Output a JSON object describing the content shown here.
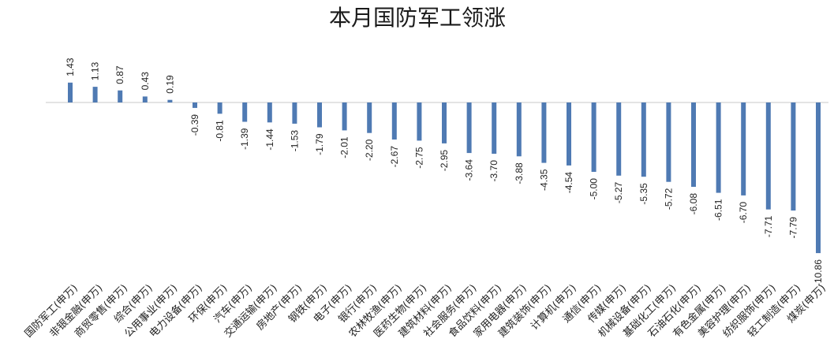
{
  "chart_data": {
    "type": "bar",
    "title": "本月国防军工领涨",
    "categories": [
      "国防军工(申万)",
      "非银金融(申万)",
      "商贸零售(申万)",
      "综合(申万)",
      "公用事业(申万)",
      "电力设备(申万)",
      "环保(申万)",
      "汽车(申万)",
      "交通运输(申万)",
      "房地产(申万)",
      "钢铁(申万)",
      "电子(申万)",
      "银行(申万)",
      "农林牧渔(申万)",
      "医药生物(申万)",
      "建筑材料(申万)",
      "社会服务(申万)",
      "食品饮料(申万)",
      "家用电器(申万)",
      "建筑装饰(申万)",
      "计算机(申万)",
      "通信(申万)",
      "传媒(申万)",
      "机械设备(申万)",
      "基础化工(申万)",
      "石油石化(申万)",
      "有色金属(申万)",
      "美容护理(申万)",
      "纺织服饰(申万)",
      "轻工制造(申万)",
      "煤炭(申万)"
    ],
    "values": [
      1.43,
      1.13,
      0.87,
      0.43,
      0.19,
      -0.39,
      -0.81,
      -1.39,
      -1.44,
      -1.53,
      -1.79,
      -2.01,
      -2.2,
      -2.67,
      -2.75,
      -2.95,
      -3.64,
      -3.7,
      -3.88,
      -4.35,
      -4.54,
      -5.0,
      -5.27,
      -5.35,
      -5.72,
      -6.08,
      -6.51,
      -6.7,
      -7.71,
      -7.79,
      -10.86
    ],
    "value_labels": [
      "1.43",
      "1.13",
      "0.87",
      "0.43",
      "0.19",
      "-0.39",
      "-0.81",
      "-1.39",
      "-1.44",
      "-1.53",
      "-1.79",
      "-2.01",
      "-2.20",
      "-2.67",
      "-2.75",
      "-2.95",
      "-3.64",
      "-3.70",
      "-3.88",
      "-4.35",
      "-4.54",
      "-5.00",
      "-5.27",
      "-5.35",
      "-5.72",
      "-6.08",
      "-6.51",
      "-6.70",
      "-7.71",
      "-7.79",
      "-10.86"
    ],
    "ylim": [
      -10.86,
      1.43
    ],
    "grid": false,
    "legend": "none",
    "bar_color": "#4f7ab3"
  }
}
